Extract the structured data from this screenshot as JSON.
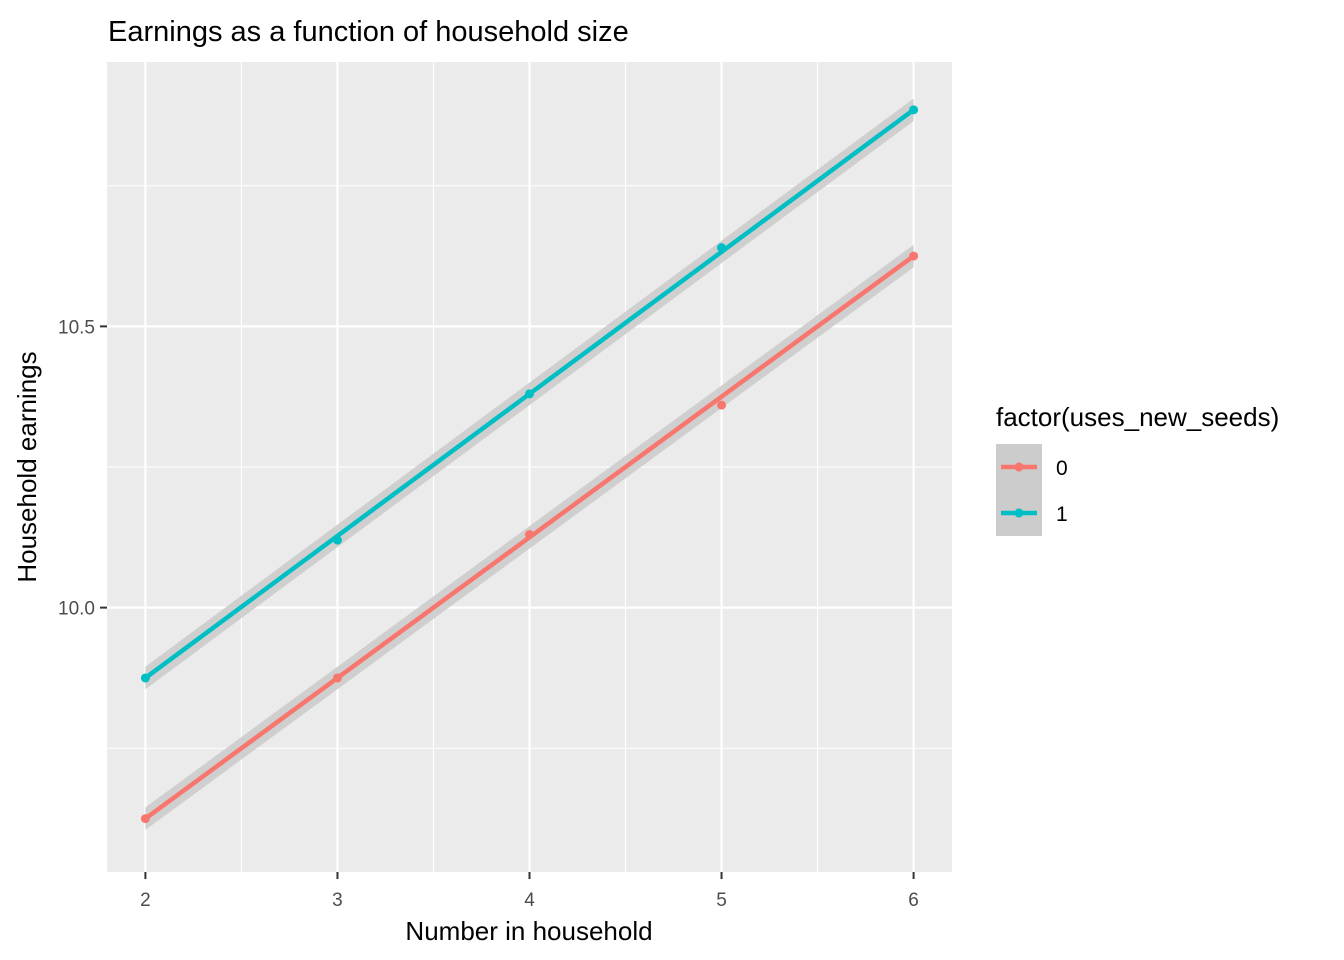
{
  "chart_data": {
    "type": "line",
    "title": "Earnings as a function of household size",
    "xlabel": "Number in household",
    "ylabel": "Household earnings",
    "x": [
      2,
      3,
      4,
      5,
      6
    ],
    "x_ticks": [
      "2",
      "3",
      "4",
      "5",
      "6"
    ],
    "y_ticks": [
      "10.0",
      "10.5"
    ],
    "xlim": [
      1.8,
      6.2
    ],
    "ylim": [
      9.53,
      10.97
    ],
    "grid": true,
    "legend": {
      "title": "factor(uses_new_seeds)",
      "placement": "right"
    },
    "series": [
      {
        "name": "0",
        "color": "#F8766D",
        "values": [
          9.625,
          9.875,
          10.13,
          10.36,
          10.625
        ],
        "fit": [
          9.625,
          9.875,
          10.125,
          10.375,
          10.625
        ]
      },
      {
        "name": "1",
        "color": "#00BFC4",
        "values": [
          9.875,
          10.12,
          10.38,
          10.64,
          10.885
        ],
        "fit": [
          9.875,
          10.1275,
          10.38,
          10.6325,
          10.885
        ]
      }
    ],
    "confidence_band_color": "#cccccc",
    "panel_color": "#ebebeb"
  }
}
